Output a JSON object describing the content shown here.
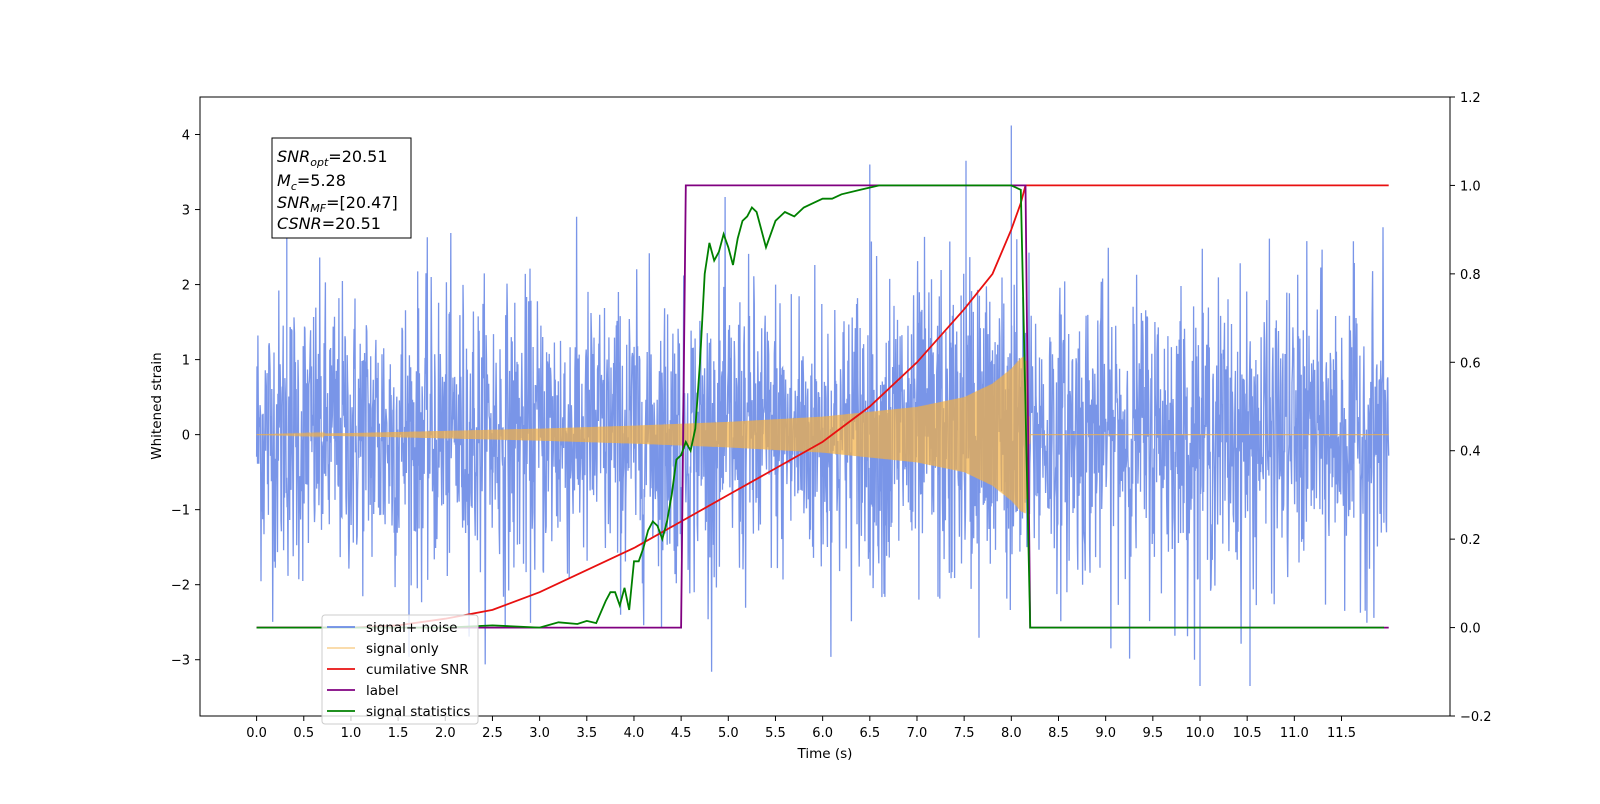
{
  "chart_data": {
    "type": "line",
    "xlabel": "Time (s)",
    "ylabel": "Whitened strain",
    "xlim": [
      -0.6,
      12.65
    ],
    "ylim": [
      -3.75,
      4.5
    ],
    "y2lim": [
      -0.2,
      1.2
    ],
    "x_ticks": [
      "0.0",
      "0.5",
      "1.0",
      "1.5",
      "2.0",
      "2.5",
      "3.0",
      "3.5",
      "4.0",
      "4.5",
      "5.0",
      "5.5",
      "6.0",
      "6.5",
      "7.0",
      "7.5",
      "8.0",
      "8.5",
      "9.0",
      "9.5",
      "10.0",
      "10.5",
      "11.0",
      "11.5"
    ],
    "y_ticks": [
      "4",
      "3",
      "2",
      "1",
      "0",
      "−1",
      "−2",
      "−3"
    ],
    "y2_ticks": [
      "1.2",
      "1.0",
      "0.8",
      "0.6",
      "0.4",
      "0.2",
      "0.0",
      "−0.2"
    ],
    "legend_position": "lower-left",
    "annotation": {
      "snr_opt": "=20.51",
      "mc": "=5.28",
      "snr_mf": "=[20.47]",
      "csnr": "=20.51"
    },
    "series": [
      {
        "name": "signal+ noise",
        "color": "#6a8ae6",
        "axis": "left",
        "style": "noise",
        "x_range": [
          0.0,
          12.0
        ],
        "noise_std": 0.95,
        "notable_peaks": [
          [
            0.32,
            3.25
          ],
          [
            8.0,
            4.12
          ],
          [
            10.0,
            -3.35
          ],
          [
            10.53,
            -3.35
          ],
          [
            6.5,
            3.6
          ],
          [
            7.52,
            3.65
          ]
        ]
      },
      {
        "name": "signal only",
        "color": "#f5b041",
        "axis": "left",
        "style": "chirp",
        "x_range": [
          0.0,
          8.2
        ],
        "envelope": [
          [
            0.0,
            0.0
          ],
          [
            1.0,
            0.02
          ],
          [
            2.0,
            0.05
          ],
          [
            3.0,
            0.08
          ],
          [
            4.0,
            0.12
          ],
          [
            5.0,
            0.17
          ],
          [
            6.0,
            0.24
          ],
          [
            7.0,
            0.37
          ],
          [
            7.5,
            0.5
          ],
          [
            7.8,
            0.68
          ],
          [
            8.0,
            0.88
          ],
          [
            8.1,
            1.02
          ],
          [
            8.15,
            1.05
          ],
          [
            8.2,
            0.0
          ],
          [
            12.0,
            0.0
          ]
        ]
      },
      {
        "name": "cumilative SNR",
        "color": "#e81010",
        "axis": "right",
        "x": [
          0.0,
          1.0,
          1.5,
          2.0,
          2.5,
          3.0,
          3.5,
          4.0,
          4.5,
          5.0,
          5.5,
          6.0,
          6.5,
          7.0,
          7.5,
          7.8,
          8.0,
          8.1,
          8.15,
          8.2,
          8.5,
          9.0,
          10.0,
          11.0,
          12.0
        ],
        "values": [
          0.0,
          0.0,
          0.005,
          0.02,
          0.04,
          0.08,
          0.13,
          0.18,
          0.24,
          0.3,
          0.36,
          0.42,
          0.5,
          0.6,
          0.72,
          0.8,
          0.9,
          0.96,
          1.0,
          1.0,
          1.0,
          1.0,
          1.0,
          1.0,
          1.0
        ]
      },
      {
        "name": "label",
        "color": "#800080",
        "axis": "right",
        "x": [
          0.0,
          4.5,
          4.55,
          8.15,
          8.2,
          12.0
        ],
        "values": [
          0.0,
          0.0,
          1.0,
          1.0,
          0.0,
          0.0
        ]
      },
      {
        "name": "signal statistics",
        "color": "#008000",
        "axis": "right",
        "x": [
          0.0,
          2.0,
          2.5,
          3.0,
          3.2,
          3.4,
          3.5,
          3.6,
          3.7,
          3.75,
          3.8,
          3.85,
          3.9,
          3.95,
          4.0,
          4.05,
          4.1,
          4.15,
          4.2,
          4.25,
          4.3,
          4.35,
          4.4,
          4.45,
          4.5,
          4.55,
          4.6,
          4.65,
          4.7,
          4.75,
          4.8,
          4.85,
          4.9,
          4.95,
          5.0,
          5.05,
          5.1,
          5.15,
          5.2,
          5.25,
          5.3,
          5.4,
          5.5,
          5.55,
          5.6,
          5.7,
          5.8,
          5.9,
          6.0,
          6.1,
          6.2,
          6.4,
          6.6,
          7.0,
          7.5,
          8.0,
          8.1,
          8.15,
          8.2,
          8.25,
          9.0,
          10.0,
          11.0,
          11.95
        ],
        "values": [
          0.0,
          0.0,
          0.005,
          0.0,
          0.012,
          0.008,
          0.015,
          0.01,
          0.06,
          0.08,
          0.08,
          0.05,
          0.09,
          0.04,
          0.15,
          0.15,
          0.18,
          0.22,
          0.24,
          0.23,
          0.2,
          0.24,
          0.3,
          0.38,
          0.39,
          0.42,
          0.4,
          0.45,
          0.6,
          0.8,
          0.87,
          0.83,
          0.85,
          0.89,
          0.86,
          0.82,
          0.88,
          0.92,
          0.93,
          0.95,
          0.94,
          0.86,
          0.92,
          0.93,
          0.94,
          0.93,
          0.95,
          0.96,
          0.97,
          0.97,
          0.98,
          0.99,
          1.0,
          1.0,
          1.0,
          1.0,
          0.99,
          0.5,
          0.0,
          0.0,
          0.0,
          0.0,
          0.0,
          0.0
        ]
      }
    ]
  }
}
